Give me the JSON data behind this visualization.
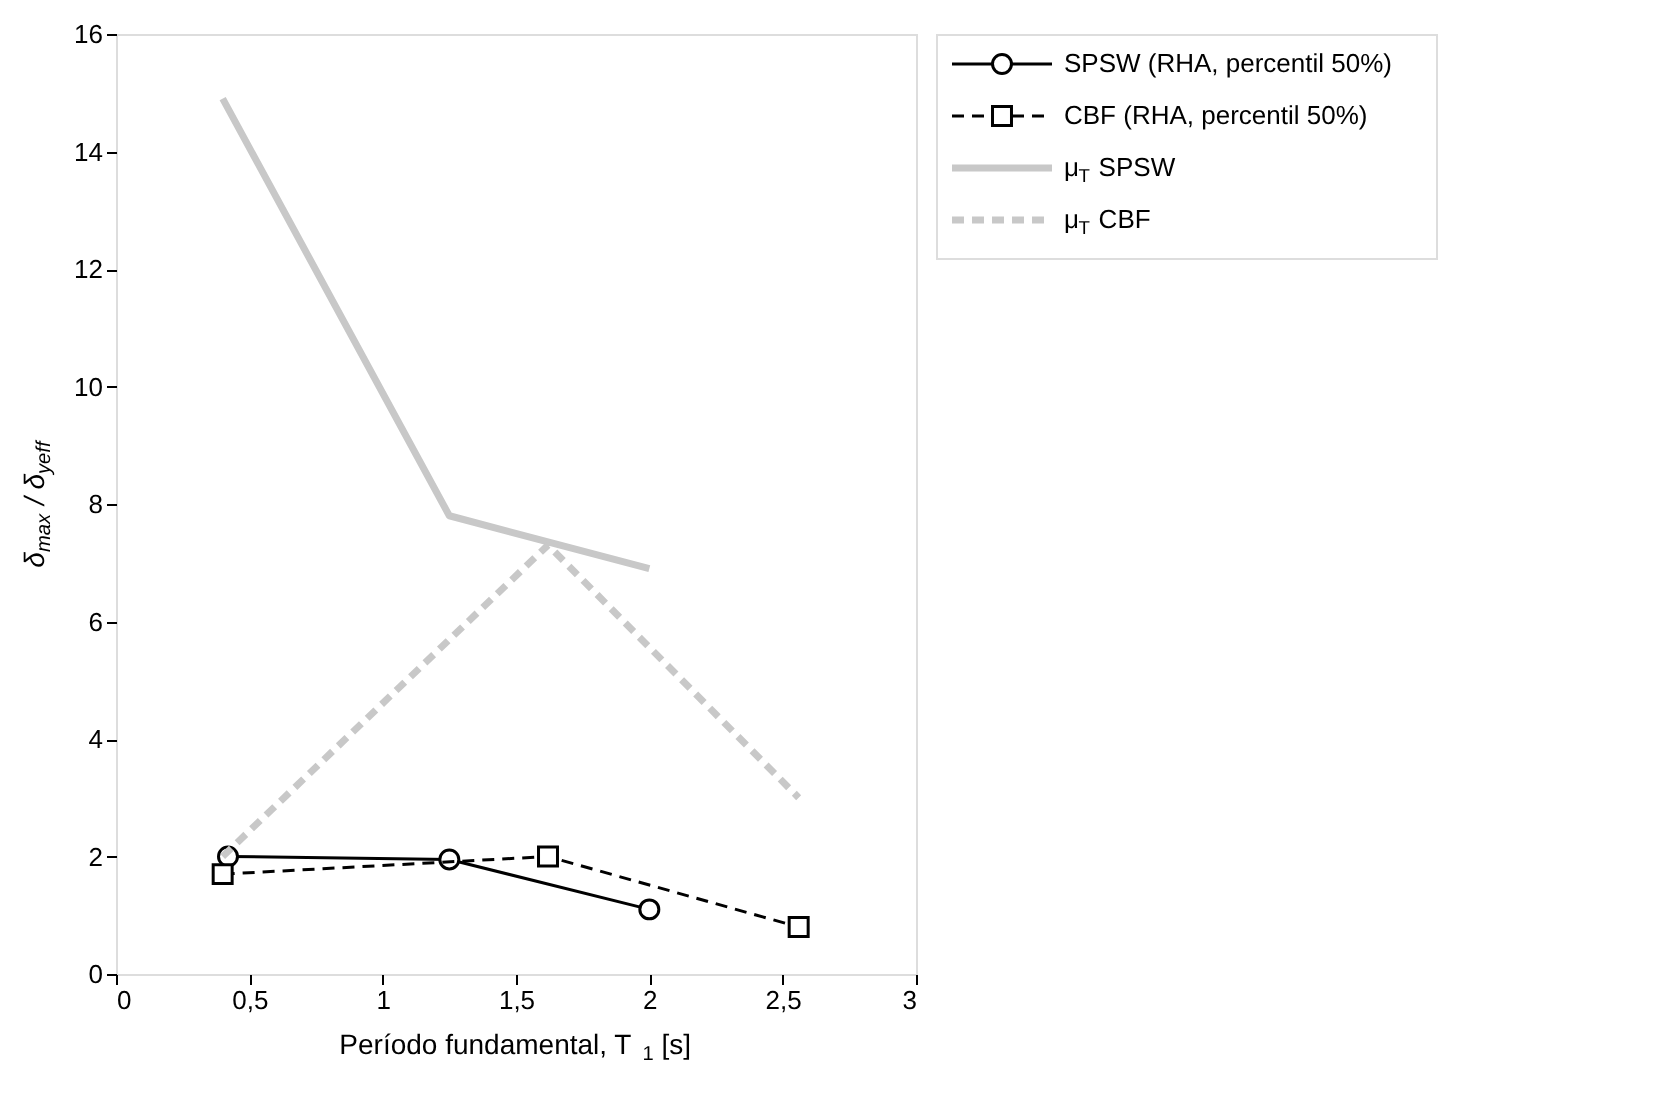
{
  "chart_data": {
    "type": "line",
    "xlabel": "Período fundamental, T$_{1}$ [s]",
    "ylabel": "δ$_{max}$ / δ$_{yeff}$",
    "xlim": [
      0,
      3
    ],
    "ylim": [
      0,
      16
    ],
    "xticks": [
      0,
      {
        "value": 0.5,
        "label": "0,5"
      },
      1,
      {
        "value": 1.5,
        "label": "1,5"
      },
      2,
      {
        "value": 2.5,
        "label": "2,5"
      },
      3
    ],
    "yticks": [
      0,
      2,
      4,
      6,
      8,
      10,
      12,
      14,
      16
    ],
    "grid": false,
    "legend": "right",
    "series": [
      {
        "name": "SPSW (RHA, percentil 50%)",
        "color": "#000000",
        "x": [
          0.42,
          1.25,
          2.0
        ],
        "values": [
          2.0,
          1.95,
          1.1
        ],
        "marker": "circle",
        "line_style": "solid"
      },
      {
        "name": "CBF (RHA, percentil 50%)",
        "color": "#000000",
        "x": [
          0.4,
          1.62,
          2.56
        ],
        "values": [
          1.7,
          2.0,
          0.8
        ],
        "marker": "square",
        "line_style": "dashed"
      },
      {
        "name": "μ$_{T}$ SPSW",
        "color": "#c8c8c8",
        "x": [
          0.4,
          1.25,
          2.0
        ],
        "values": [
          14.9,
          7.8,
          6.9
        ],
        "marker": "none",
        "line_style": "solid"
      },
      {
        "name": "μ$_{T}$ CBF",
        "color": "#c8c8c8",
        "x": [
          0.4,
          1.62,
          2.56
        ],
        "values": [
          2.0,
          7.3,
          3.0
        ],
        "marker": "none",
        "line_style": "dashed"
      }
    ]
  }
}
